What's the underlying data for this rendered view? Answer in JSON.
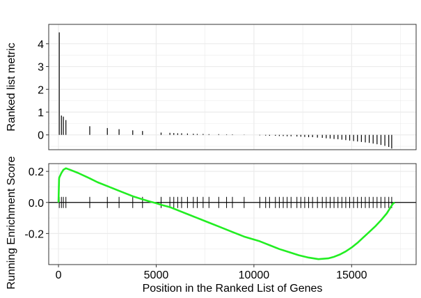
{
  "chart_data": {
    "type": "gsea-enrichment",
    "xlabel": "Position in the Ranked List of Genes",
    "xlim": [
      -500,
      18300
    ],
    "x_ticks": [
      0,
      5000,
      10000,
      15000
    ],
    "x_tick_labels": [
      "0",
      "5000",
      "10000",
      "15000"
    ],
    "grid": true,
    "colors": {
      "enrichment_line": "#22ee22",
      "bars": "#000000",
      "grid": "#ebebeb",
      "panel_border": "#333333"
    },
    "metric_panel": {
      "ylabel": "Ranked list metric",
      "ylim": [
        -0.65,
        4.85
      ],
      "y_ticks": [
        0,
        1,
        2,
        3,
        4
      ],
      "y_tick_labels": [
        "0",
        "1",
        "2",
        "3",
        "4"
      ],
      "bars": [
        {
          "x": 40,
          "value": 4.5
        },
        {
          "x": 150,
          "value": 0.85
        },
        {
          "x": 250,
          "value": 0.8
        },
        {
          "x": 380,
          "value": 0.65
        },
        {
          "x": 1600,
          "value": 0.38
        },
        {
          "x": 2500,
          "value": 0.3
        },
        {
          "x": 3100,
          "value": 0.25
        },
        {
          "x": 3800,
          "value": 0.2
        },
        {
          "x": 4300,
          "value": 0.17
        },
        {
          "x": 5250,
          "value": 0.1
        },
        {
          "x": 5700,
          "value": 0.09
        },
        {
          "x": 5900,
          "value": 0.08
        },
        {
          "x": 6100,
          "value": 0.07
        },
        {
          "x": 6300,
          "value": 0.07
        },
        {
          "x": 6600,
          "value": 0.06
        },
        {
          "x": 6900,
          "value": 0.05
        },
        {
          "x": 7100,
          "value": 0.04
        },
        {
          "x": 7400,
          "value": 0.04
        },
        {
          "x": 7700,
          "value": 0.03
        },
        {
          "x": 8200,
          "value": 0.03
        },
        {
          "x": 8600,
          "value": 0.02
        },
        {
          "x": 8900,
          "value": 0.02
        },
        {
          "x": 9500,
          "value": 0.01
        },
        {
          "x": 10300,
          "value": -0.02
        },
        {
          "x": 10600,
          "value": -0.03
        },
        {
          "x": 10800,
          "value": -0.04
        },
        {
          "x": 11100,
          "value": -0.04
        },
        {
          "x": 11300,
          "value": -0.05
        },
        {
          "x": 11500,
          "value": -0.05
        },
        {
          "x": 11700,
          "value": -0.06
        },
        {
          "x": 11900,
          "value": -0.06
        },
        {
          "x": 12200,
          "value": -0.07
        },
        {
          "x": 12400,
          "value": -0.08
        },
        {
          "x": 12600,
          "value": -0.09
        },
        {
          "x": 12800,
          "value": -0.1
        },
        {
          "x": 13000,
          "value": -0.1
        },
        {
          "x": 13250,
          "value": -0.12
        },
        {
          "x": 13500,
          "value": -0.13
        },
        {
          "x": 13700,
          "value": -0.15
        },
        {
          "x": 13900,
          "value": -0.16
        },
        {
          "x": 14100,
          "value": -0.18
        },
        {
          "x": 14300,
          "value": -0.19
        },
        {
          "x": 14500,
          "value": -0.21
        },
        {
          "x": 14700,
          "value": -0.23
        },
        {
          "x": 14900,
          "value": -0.25
        },
        {
          "x": 15100,
          "value": -0.27
        },
        {
          "x": 15300,
          "value": -0.29
        },
        {
          "x": 15500,
          "value": -0.31
        },
        {
          "x": 15700,
          "value": -0.33
        },
        {
          "x": 15900,
          "value": -0.35
        },
        {
          "x": 16100,
          "value": -0.38
        },
        {
          "x": 16300,
          "value": -0.41
        },
        {
          "x": 16500,
          "value": -0.44
        },
        {
          "x": 16700,
          "value": -0.48
        },
        {
          "x": 16900,
          "value": -0.53
        },
        {
          "x": 17050,
          "value": -0.6
        }
      ]
    },
    "enrichment_panel": {
      "ylabel": "Running Enrichment Score",
      "ylim": [
        -0.4,
        0.25
      ],
      "y_ticks": [
        0.2,
        0.0,
        -0.2
      ],
      "y_tick_labels": [
        "0.2",
        "0.0",
        "-0.2"
      ],
      "running_score": {
        "x": [
          0,
          30,
          40,
          150,
          250,
          380,
          600,
          1000,
          1600,
          2000,
          2500,
          3100,
          3800,
          4300,
          4700,
          5000,
          5250,
          5700,
          6100,
          6600,
          7100,
          7700,
          8200,
          8900,
          9500,
          10300,
          10800,
          11300,
          11800,
          12300,
          12800,
          13300,
          13800,
          14100,
          14400,
          14700,
          15000,
          15300,
          15600,
          15900,
          16200,
          16500,
          16800,
          17000,
          17100,
          17200
        ],
        "y": [
          0.0,
          0.15,
          0.16,
          0.19,
          0.21,
          0.22,
          0.21,
          0.19,
          0.155,
          0.13,
          0.105,
          0.075,
          0.04,
          0.02,
          0.005,
          -0.005,
          -0.015,
          -0.03,
          -0.05,
          -0.075,
          -0.1,
          -0.13,
          -0.155,
          -0.19,
          -0.22,
          -0.25,
          -0.275,
          -0.3,
          -0.32,
          -0.34,
          -0.355,
          -0.365,
          -0.36,
          -0.35,
          -0.335,
          -0.315,
          -0.29,
          -0.26,
          -0.225,
          -0.19,
          -0.155,
          -0.115,
          -0.07,
          -0.03,
          -0.01,
          0.0
        ]
      },
      "hit_positions": [
        40,
        150,
        250,
        380,
        1600,
        2500,
        3100,
        3800,
        4300,
        5250,
        5700,
        5900,
        6100,
        6300,
        6600,
        6900,
        7100,
        7400,
        7700,
        8200,
        8600,
        8900,
        9500,
        10300,
        10600,
        10800,
        11100,
        11300,
        11500,
        11700,
        11900,
        12200,
        12400,
        12600,
        12800,
        13000,
        13250,
        13500,
        13700,
        13900,
        14100,
        14300,
        14500,
        14700,
        14900,
        15100,
        15300,
        15500,
        15700,
        15900,
        16100,
        16300,
        16500,
        16700,
        16900,
        17050
      ]
    }
  }
}
